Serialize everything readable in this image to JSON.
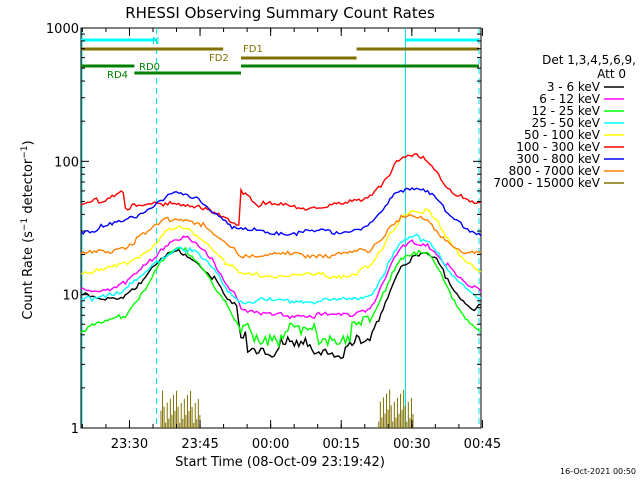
{
  "chart_data": {
    "type": "line",
    "title": "RHESSI Observing Summary Count Rates",
    "xlabel": "Start Time (08-Oct-09 23:19:42)",
    "ylabel_main": "Count Rate (s",
    "ylabel_sup1": "−1",
    "ylabel_mid": " detector",
    "ylabel_sup2": "−1",
    "ylabel_end": ")",
    "y_scale": "log",
    "ylim": [
      1,
      1000
    ],
    "y_ticks": [
      {
        "value": 1,
        "label": "1"
      },
      {
        "value": 10,
        "label": "10"
      },
      {
        "value": 100,
        "label": "100"
      },
      {
        "value": 1000,
        "label": "1000"
      }
    ],
    "x_start_min": -9.7,
    "x_end_min": 75.3,
    "x_ticks": [
      {
        "value": 10.3,
        "label": "23:30"
      },
      {
        "value": 25.3,
        "label": "23:45"
      },
      {
        "value": 40.3,
        "label": "00:00"
      },
      {
        "value": 55.3,
        "label": "00:15"
      },
      {
        "value": 70.3,
        "label": "00:30"
      },
      {
        "value": 85.3,
        "label": "00:45"
      }
    ],
    "detectors_label": "Det 1,3,4,5,6,9,",
    "attenuator_label": "Att 0",
    "timestamp": "16-Oct-2021 00:50",
    "state_bars": [
      {
        "name": "N",
        "color": "#00ffff",
        "segments": [
          [
            0,
            17
          ],
          [
            73,
            90
          ]
        ]
      },
      {
        "name": "FD1",
        "color": "#807000",
        "segments": [
          [
            0,
            32
          ],
          [
            62,
            90
          ]
        ]
      },
      {
        "name": "FD2",
        "color": "#807000",
        "segments": [
          [
            36,
            62
          ]
        ]
      },
      {
        "name": "RD0",
        "color": "#008000",
        "segments": [
          [
            0,
            12
          ],
          [
            36,
            90
          ]
        ]
      },
      {
        "name": "RD4",
        "color": "#008000",
        "segments": [
          [
            12,
            36
          ]
        ]
      }
    ],
    "night_markers": [
      17,
      90
    ],
    "day_markers": [
      0,
      73
    ],
    "series": [
      {
        "name": "3 - 6 keV",
        "color": "#000000",
        "x": [
          -8,
          0,
          5,
          10,
          15,
          18,
          20,
          22,
          24,
          27,
          30,
          33,
          35,
          36,
          40,
          50,
          60,
          65,
          68,
          70,
          72,
          75,
          78,
          80,
          82,
          85,
          88,
          90
        ],
        "y": [
          10,
          10,
          9,
          10,
          14,
          18,
          20,
          21,
          20,
          17,
          13,
          9,
          8,
          4.5,
          4,
          4,
          4,
          4.5,
          8,
          12,
          17,
          19,
          20,
          18,
          14,
          10,
          8,
          8
        ]
      },
      {
        "name": "6 - 12 keV",
        "color": "#ff00ff",
        "x": [
          -8,
          0,
          5,
          10,
          15,
          18,
          20,
          22,
          24,
          27,
          30,
          33,
          35,
          36,
          40,
          50,
          60,
          65,
          68,
          70,
          72,
          75,
          78,
          80,
          82,
          85,
          88,
          90
        ],
        "y": [
          11,
          11,
          11,
          12,
          17,
          22,
          25,
          27,
          26,
          22,
          17,
          12,
          10,
          8,
          7,
          7,
          7,
          8,
          12,
          17,
          22,
          25,
          24,
          21,
          17,
          13,
          11,
          11
        ]
      },
      {
        "name": "12 - 25 keV",
        "color": "#00ff00",
        "x": [
          -8,
          0,
          5,
          10,
          15,
          18,
          20,
          22,
          24,
          27,
          30,
          33,
          35,
          36,
          40,
          50,
          60,
          65,
          68,
          70,
          72,
          75,
          78,
          80,
          82,
          85,
          88,
          90
        ],
        "y": [
          5.5,
          5.5,
          6,
          7,
          12,
          17,
          20,
          22,
          21,
          17,
          12,
          8,
          6,
          5,
          5,
          5,
          5,
          6,
          10,
          15,
          19,
          21,
          20,
          16,
          12,
          8,
          6,
          5.5
        ]
      },
      {
        "name": "25 - 50 keV",
        "color": "#00ffff",
        "x": [
          -8,
          0,
          5,
          10,
          15,
          18,
          20,
          22,
          24,
          27,
          30,
          33,
          35,
          36,
          40,
          50,
          60,
          65,
          68,
          70,
          72,
          75,
          78,
          80,
          82,
          85,
          88,
          90
        ],
        "y": [
          9,
          9,
          10,
          11,
          15,
          19,
          21,
          23,
          22,
          19,
          15,
          11,
          9.5,
          9,
          9,
          9,
          9,
          10,
          14,
          19,
          24,
          27,
          26,
          22,
          17,
          12,
          10,
          9
        ]
      },
      {
        "name": "50 - 100 keV",
        "color": "#ffff00",
        "x": [
          -8,
          0,
          5,
          10,
          15,
          18,
          20,
          22,
          24,
          27,
          30,
          33,
          35,
          36,
          40,
          50,
          60,
          65,
          68,
          70,
          72,
          75,
          78,
          80,
          82,
          85,
          88,
          90
        ],
        "y": [
          15,
          15,
          15,
          17,
          22,
          27,
          30,
          31,
          30,
          27,
          22,
          17,
          15,
          14,
          14,
          14,
          14,
          16,
          22,
          30,
          39,
          44,
          42,
          35,
          27,
          20,
          17,
          15
        ]
      },
      {
        "name": "100 - 300 keV",
        "color": "#ff0000",
        "x": [
          -8,
          0,
          5,
          9.9,
          10,
          15,
          18,
          20,
          22,
          24,
          27,
          30,
          33,
          35.9,
          36,
          40,
          50,
          60,
          65,
          68,
          70,
          72,
          75,
          78,
          80,
          82,
          85,
          88,
          90
        ],
        "y": [
          45,
          47,
          52,
          62,
          45,
          46,
          48,
          50,
          49,
          48,
          44,
          40,
          36,
          34,
          62,
          48,
          45,
          48,
          56,
          70,
          88,
          104,
          110,
          100,
          85,
          68,
          55,
          48,
          48
        ]
      },
      {
        "name": "300 - 800 keV",
        "color": "#0000ff",
        "x": [
          -8,
          0,
          5,
          10,
          15,
          18,
          20,
          22,
          24,
          27,
          30,
          33,
          35,
          36,
          40,
          50,
          60,
          65,
          68,
          70,
          72,
          75,
          78,
          80,
          82,
          85,
          88,
          90
        ],
        "y": [
          29,
          30,
          32,
          35,
          44,
          52,
          55,
          57,
          54,
          50,
          42,
          35,
          31,
          30,
          30,
          29,
          30,
          33,
          42,
          53,
          62,
          64,
          62,
          52,
          42,
          34,
          30,
          29
        ]
      },
      {
        "name": "800 - 7000 keV",
        "color": "#ff8000",
        "x": [
          -8,
          0,
          5,
          10,
          15,
          18,
          20,
          22,
          24,
          27,
          30,
          33,
          35,
          36,
          40,
          50,
          60,
          65,
          68,
          70,
          72,
          75,
          78,
          80,
          82,
          85,
          88,
          90
        ],
        "y": [
          20,
          20,
          21,
          23,
          29,
          34,
          37,
          38,
          37,
          34,
          28,
          23,
          21,
          20,
          20,
          20,
          20,
          22,
          28,
          34,
          38,
          38,
          36,
          31,
          26,
          22,
          20,
          20
        ]
      },
      {
        "name": "7000 - 15000 keV",
        "color": "#807000",
        "spikes": [
          [
            18,
            27
          ],
          [
            67,
            75
          ]
        ],
        "y_level": 1.0
      }
    ]
  }
}
